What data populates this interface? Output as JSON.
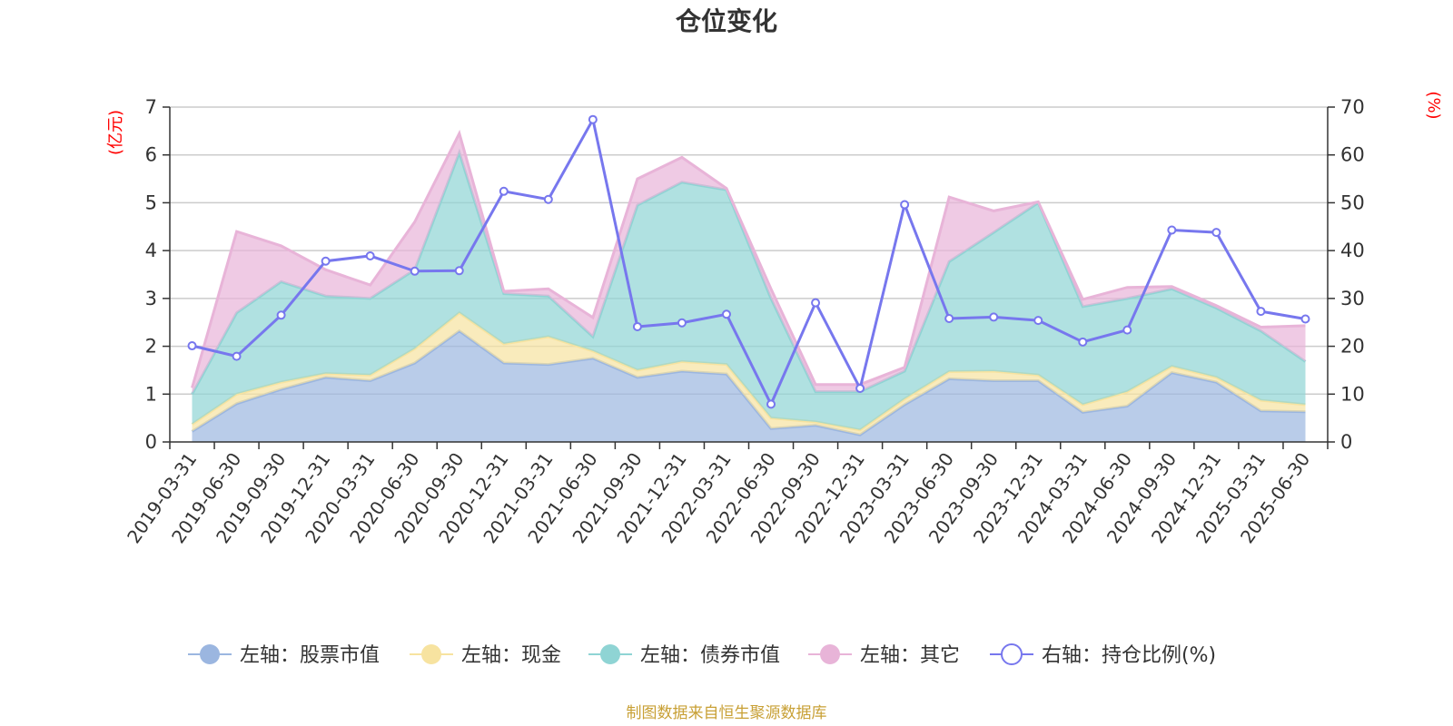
{
  "chart_data": {
    "type": "area",
    "title": "仓位变化",
    "left_unit": "(亿元)",
    "right_unit": "(%)",
    "categories": [
      "2019-03-31",
      "2019-06-30",
      "2019-09-30",
      "2019-12-31",
      "2020-03-31",
      "2020-06-30",
      "2020-09-30",
      "2020-12-31",
      "2021-03-31",
      "2021-06-30",
      "2021-09-30",
      "2021-12-31",
      "2022-03-31",
      "2022-06-30",
      "2022-09-30",
      "2022-12-31",
      "2023-03-31",
      "2023-06-30",
      "2023-09-30",
      "2023-12-31",
      "2024-03-31",
      "2024-06-30",
      "2024-09-30",
      "2024-12-31",
      "2025-03-31",
      "2025-06-30"
    ],
    "ylim_left": [
      0,
      7
    ],
    "yticks_left": [
      "0",
      "1",
      "2",
      "3",
      "4",
      "5",
      "6",
      "7"
    ],
    "ylim_right": [
      0,
      70
    ],
    "yticks_right": [
      "0",
      "10",
      "20",
      "30",
      "40",
      "50",
      "60",
      "70"
    ],
    "series": [
      {
        "name": "左轴：股票市值",
        "axis": "left",
        "stack": true,
        "color": "#9bb6e0",
        "values": [
          0.22,
          0.8,
          1.1,
          1.35,
          1.28,
          1.65,
          2.32,
          1.65,
          1.62,
          1.75,
          1.35,
          1.48,
          1.42,
          0.28,
          0.35,
          0.15,
          0.78,
          1.32,
          1.28,
          1.28,
          0.62,
          0.75,
          1.45,
          1.25,
          0.65,
          0.63
        ]
      },
      {
        "name": "左轴：现金",
        "axis": "left",
        "stack": true,
        "color": "#f7e3a0",
        "values": [
          0.15,
          0.2,
          0.15,
          0.08,
          0.12,
          0.3,
          0.38,
          0.4,
          0.58,
          0.15,
          0.15,
          0.2,
          0.2,
          0.22,
          0.07,
          0.1,
          0.12,
          0.15,
          0.2,
          0.12,
          0.16,
          0.3,
          0.13,
          0.1,
          0.22,
          0.15
        ]
      },
      {
        "name": "左轴：债券市值",
        "axis": "left",
        "stack": true,
        "color": "#8fd4d4",
        "values": [
          0.63,
          1.7,
          2.1,
          1.62,
          1.6,
          1.65,
          3.35,
          1.05,
          0.85,
          0.3,
          3.45,
          3.75,
          3.65,
          2.5,
          0.63,
          0.8,
          0.58,
          2.3,
          2.9,
          3.6,
          2.05,
          1.95,
          1.62,
          1.45,
          1.45,
          0.9
        ]
      },
      {
        "name": "左轴：其它",
        "axis": "left",
        "stack": true,
        "color": "#e8b4d8",
        "values": [
          0.13,
          1.7,
          0.75,
          0.55,
          0.28,
          1.0,
          0.4,
          0.05,
          0.15,
          0.4,
          0.55,
          0.52,
          0.03,
          0.2,
          0.15,
          0.15,
          0.08,
          1.35,
          0.45,
          0.02,
          0.15,
          0.23,
          0.05,
          0.05,
          0.08,
          0.75
        ]
      },
      {
        "name": "右轴：持仓比例(%)",
        "axis": "right",
        "stack": false,
        "color": "#7777ee",
        "values": [
          20.1,
          17.9,
          26.5,
          37.8,
          38.9,
          35.7,
          35.8,
          52.4,
          50.7,
          67.4,
          24.1,
          24.9,
          26.7,
          7.9,
          29.1,
          11.2,
          49.6,
          25.8,
          26.1,
          25.4,
          20.9,
          23.4,
          44.3,
          43.8,
          27.3,
          25.7
        ]
      }
    ],
    "legend_position": "bottom",
    "grid": true
  },
  "source_note": "制图数据来自恒生聚源数据库"
}
